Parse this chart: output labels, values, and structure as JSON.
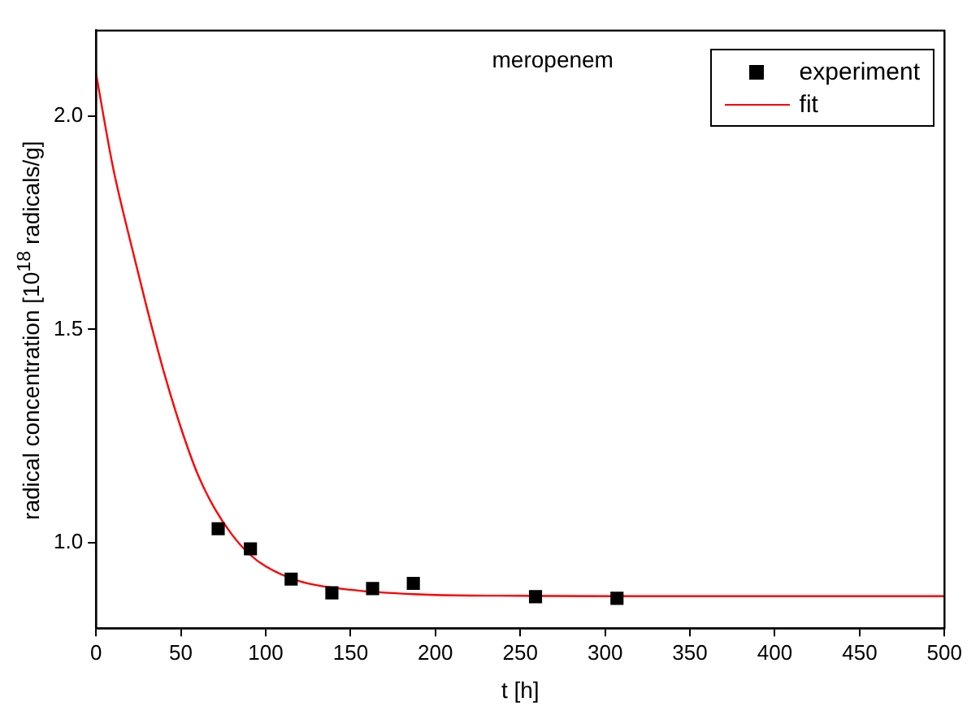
{
  "chart_data": {
    "type": "scatter",
    "title": "meropenem",
    "xlabel": "t [h]",
    "ylabel": "radical concentration [10$^{18}$ radicals/g]",
    "series": [
      {
        "name": "experiment",
        "type": "scatter",
        "color": "#000000",
        "marker": "square",
        "x": [
          72,
          91,
          115,
          139,
          163,
          187,
          259,
          307
        ],
        "values": [
          1.033,
          0.986,
          0.915,
          0.883,
          0.893,
          0.905,
          0.874,
          0.87
        ]
      },
      {
        "name": "fit",
        "type": "line",
        "color": "#ff0000",
        "marker": "none",
        "line_style": "solid",
        "x": [
          0,
          10,
          20,
          30,
          40,
          50,
          60,
          70,
          80,
          90,
          100,
          120,
          150,
          200,
          250,
          300,
          400,
          500
        ],
        "values": [
          2.1,
          1.88,
          1.71,
          1.55,
          1.4,
          1.27,
          1.16,
          1.08,
          1.02,
          0.975,
          0.945,
          0.91,
          0.89,
          0.878,
          0.876,
          0.875,
          0.875,
          0.875
        ]
      }
    ],
    "xlim": [
      0,
      500
    ],
    "xticks": [
      0,
      50,
      100,
      150,
      200,
      250,
      300,
      350,
      400,
      450,
      500
    ],
    "ylim": [
      0.8,
      2.2
    ],
    "yticks": [
      {
        "value": 1,
        "label": "1.0"
      },
      {
        "value": 1.5,
        "label": "1.5"
      },
      {
        "value": 2,
        "label": "2.0"
      }
    ],
    "grid": false,
    "legend": "top right"
  }
}
